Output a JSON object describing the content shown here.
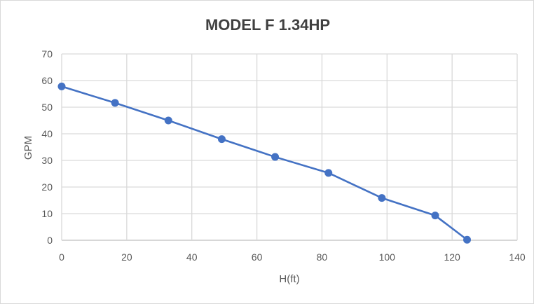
{
  "chart_data": {
    "type": "line",
    "title": "MODEL F 1.34HP",
    "xlabel": "H(ft)",
    "ylabel": "GPM",
    "xlim": [
      0,
      140
    ],
    "ylim": [
      0,
      70
    ],
    "xticks": [
      0,
      20,
      40,
      60,
      80,
      100,
      120,
      140
    ],
    "yticks": [
      0,
      10,
      20,
      30,
      40,
      50,
      60,
      70
    ],
    "grid": true,
    "markers": true,
    "series_color": "#4472c4",
    "x": [
      0,
      16.4,
      32.8,
      49.2,
      65.6,
      82.0,
      98.4,
      114.8,
      124.6
    ],
    "y": [
      57.8,
      51.6,
      45.0,
      38.0,
      31.3,
      25.3,
      15.9,
      9.3,
      0.2
    ]
  }
}
